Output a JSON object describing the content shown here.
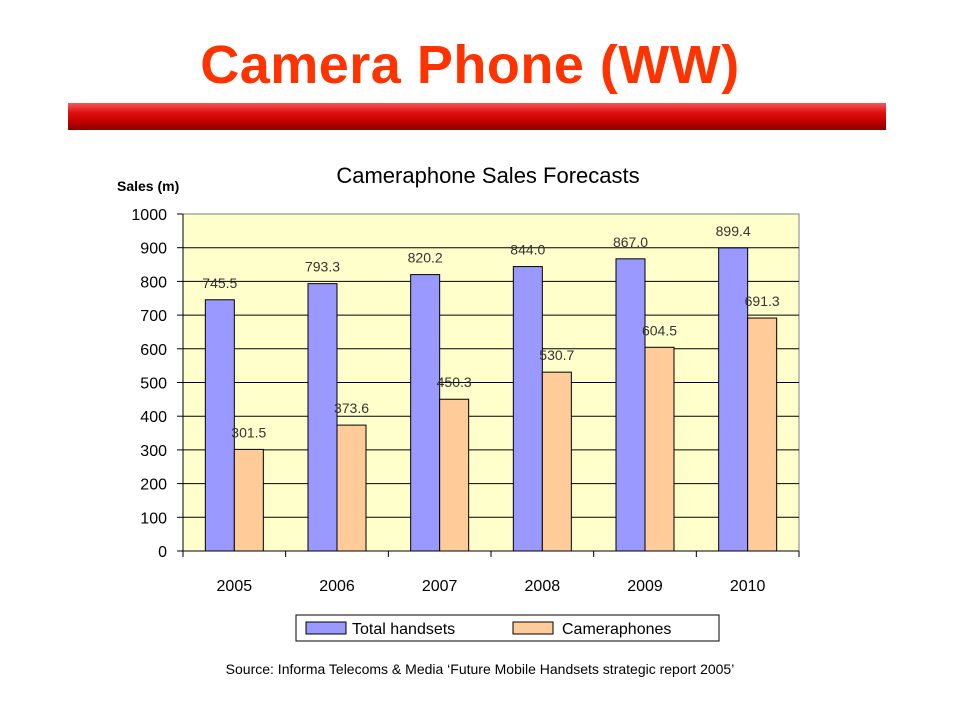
{
  "slide": {
    "title": "Camera Phone (WW)",
    "source": "Source: Informa Telecoms & Media ‘Future Mobile Handsets strategic report 2005’"
  },
  "colors": {
    "accent": "#ff3300",
    "plot_background": "#ffffcc",
    "total_handsets": "#9999ff",
    "cameraphones": "#ffcc99"
  },
  "chart_data": {
    "type": "bar",
    "title": "Cameraphone Sales Forecasts",
    "xlabel": "",
    "ylabel": "Sales (m)",
    "ylim": [
      0,
      1000
    ],
    "yticks": [
      0,
      100,
      200,
      300,
      400,
      500,
      600,
      700,
      800,
      900,
      1000
    ],
    "grid": true,
    "legend_position": "bottom",
    "categories": [
      "2005",
      "2006",
      "2007",
      "2008",
      "2009",
      "2010"
    ],
    "series": [
      {
        "name": "Total handsets",
        "values": [
          745.5,
          793.3,
          820.2,
          844.0,
          867.0,
          899.4
        ],
        "labels": [
          "745.5",
          "793.3",
          "820.2",
          "844.0",
          "867.0",
          "899.4"
        ],
        "color": "#9999ff"
      },
      {
        "name": "Cameraphones",
        "values": [
          301.5,
          373.6,
          450.3,
          530.7,
          604.5,
          691.3
        ],
        "labels": [
          "301.5",
          "373.6",
          "450.3",
          "530.7",
          "604.5",
          "691.3"
        ],
        "color": "#ffcc99"
      }
    ]
  }
}
